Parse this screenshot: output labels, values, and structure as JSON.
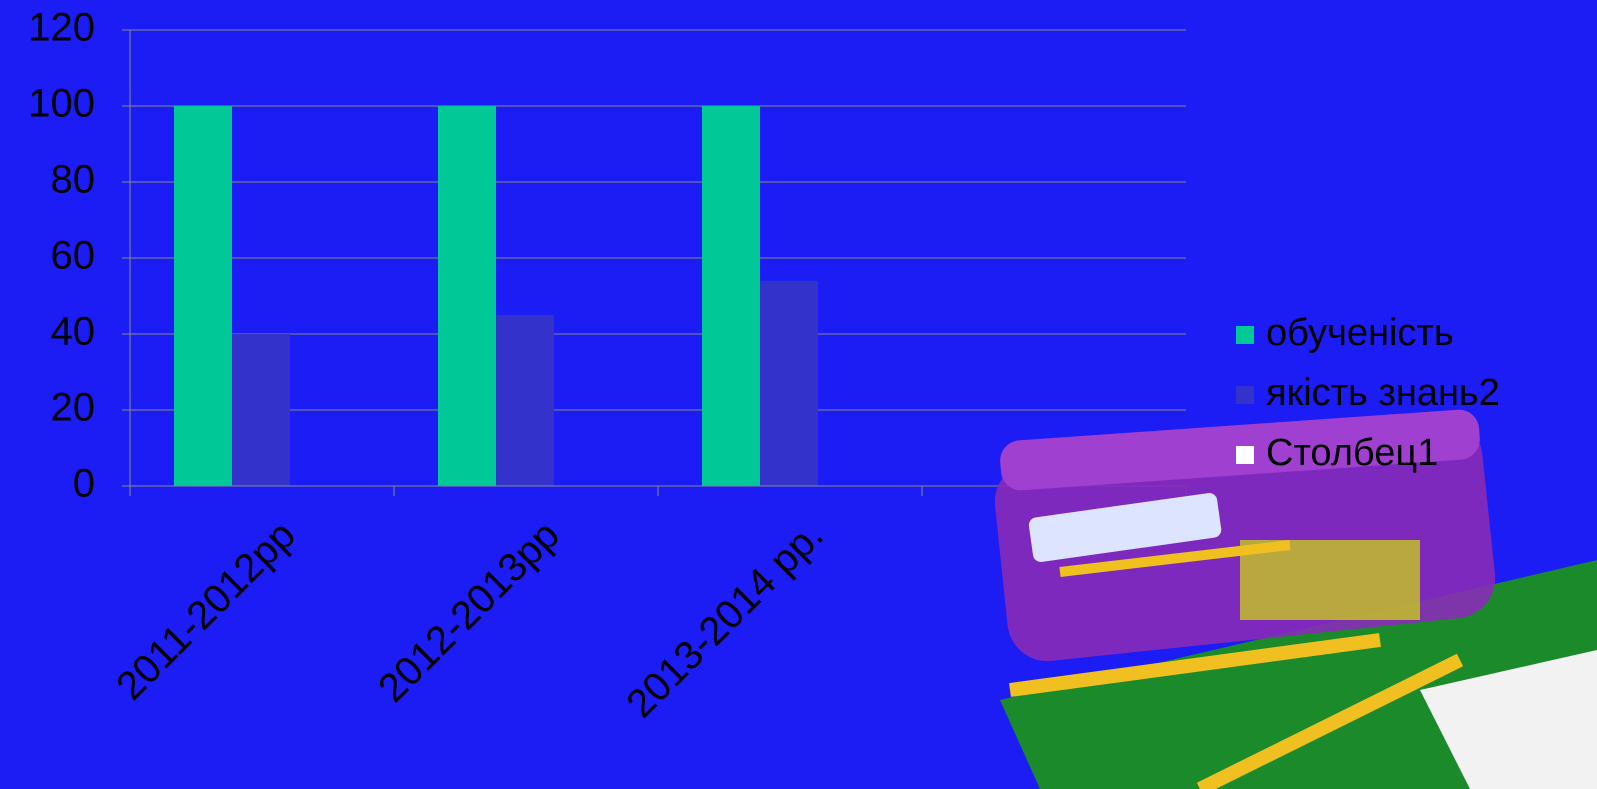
{
  "chart_data": {
    "type": "bar",
    "categories": [
      "2011-2012рр",
      "2012-2013рр",
      "2013-2014 рр.",
      null
    ],
    "series": [
      {
        "name": "обученість",
        "color": "#00c896",
        "values": [
          100,
          100,
          100,
          null
        ]
      },
      {
        "name": "якість знань2",
        "color": "#3333cc",
        "values": [
          40,
          45,
          54,
          null
        ]
      },
      {
        "name": "Столбец1",
        "color": "#ffffff",
        "values": [
          null,
          null,
          null,
          null
        ]
      }
    ],
    "ylim": [
      0,
      120
    ],
    "yticks": [
      0,
      20,
      40,
      60,
      80,
      100,
      120
    ],
    "grid": true,
    "legend": "right"
  }
}
